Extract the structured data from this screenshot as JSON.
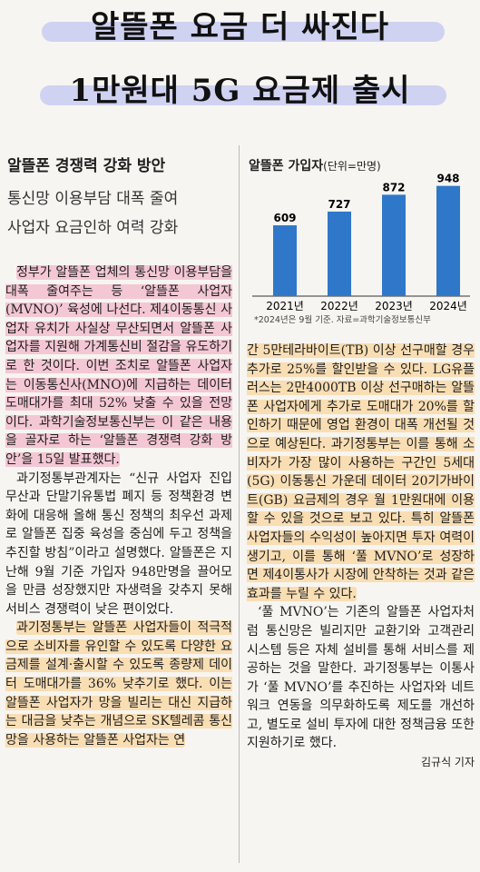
{
  "headline": {
    "line1": "알뜰폰 요금 더 싸진다",
    "line2": "1만원대 5G 요금제 출시"
  },
  "subheading": {
    "title": "알뜰폰 경쟁력 강화 방안",
    "line1": "통신망 이용부담 대폭 줄여",
    "line2": "사업자 요금인하 여력 강화"
  },
  "chart_data": {
    "type": "bar",
    "title": "알뜰폰 가입자",
    "unit": "(단위=만명)",
    "categories": [
      "2021년",
      "2022년",
      "2023년",
      "2024년"
    ],
    "values": [
      609,
      727,
      872,
      948
    ],
    "note": "*2024년은 9월 기준. 자료=과학기술정보통신부",
    "color": "#2f78c9"
  },
  "article": {
    "col1": [
      "정부가 알뜰폰 업체의 통신망 이용부담을 대폭 줄여주는 등 ‘알뜰폰 사업자(MVNO)’ 육성에 나선다. 제4이동통신 사업자 유치가 사실상 무산되면서 알뜰폰 사업자를 지원해 가계통신비 절감을 유도하기로 한 것이다. 이번 조치로 알뜰폰 사업자는 이동통신사(MNO)에 지급하는 데이터 도매대가를 최대 52% 낮출 수 있을 전망이다. 과학기술정보통신부는 이 같은 내용을 골자로 하는 ‘알뜰폰 경쟁력 강화 방안’을 15일 발표했다.",
      "과기정통부관계자는 “신규 사업자 진입 무산과 단말기유통법 폐지 등 정책환경 변화에 대응해 올해 통신 정책의 최우선 과제로 알뜰폰 집중 육성을 중심에 두고 정책을 추진할 방침”이라고 설명했다. 알뜰폰은 지난해 9월 기준 가입자 948만명을 끌어모을 만큼 성장했지만 자생력을 갖추지 못해 서비스 경쟁력이 낮은 편이었다.",
      "과기정통부는 알뜰폰 사업자들이 적극적으로 소비자를 유인할 수 있도록 다양한 요금제를 설계·출시할 수 있도록 종량제 데이터 도매대가를 36% 낮추기로 했다. 이는 알뜰폰 사업자가 망을 빌리는 대신 지급하는 대금을 낮추는 개념으로 SK텔레콤 통신망을 사용하는 알뜰폰 사업자는 연"
    ],
    "col2": [
      "간 5만테라바이트(TB) 이상 선구매할 경우 추가로 25%를 할인받을 수 있다. LG유플러스는 2만4000TB 이상 선구매하는 알뜰폰 사업자에게 추가로 도매대가 20%를 할인하기 때문에 영업 환경이 대폭 개선될 것으로 예상된다. 과기정통부는 이를 통해 소비자가 가장 많이 사용하는 구간인 5세대(5G) 이동통신 가운데 데이터 20기가바이트(GB) 요금제의 경우 월 1만원대에 이용할 수 있을 것으로 보고 있다. 특히 알뜰폰 사업자들의 수익성이 높아지면 투자 여력이 생기고, 이를 통해 ‘풀 MVNO’로 성장하면 제4이통사가 시장에 안착하는 것과 같은 효과를 누릴 수 있다.",
      "‘풀 MVNO’는 기존의 알뜰폰 사업자처럼 통신망은 빌리지만 교환기와 고객관리 시스템 등은 자체 설비를 통해 서비스를 제공하는 것을 말한다. 과기정통부는 이통사가 ‘풀 MVNO’를 추진하는 사업자와 네트워크 연동을 의무화하도록 제도를 개선하고, 별도로 설비 투자에 대한 정책금융 또한 지원하기로 했다."
    ],
    "byline": "김규식 기자"
  }
}
